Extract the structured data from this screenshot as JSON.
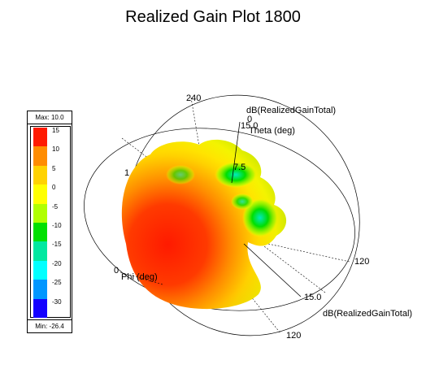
{
  "chart_data": {
    "type": "polar-3d-surface",
    "title": "Realized Gain Plot 1800",
    "quantity": "dB(RealizedGainTotal)",
    "legend": {
      "max_label": "Max: 10.0",
      "min_label": "Min: -26.4",
      "ticks": [
        "15",
        "10",
        "5",
        "0",
        "-5",
        "-10",
        "-15",
        "-20",
        "-25",
        "-30"
      ],
      "colors": [
        "#ff1a00",
        "#ff8c00",
        "#ffd200",
        "#ffff00",
        "#b0ff00",
        "#00e000",
        "#00e8a0",
        "#00ffff",
        "#0096ff",
        "#1400ff"
      ]
    },
    "axes": {
      "theta_label": "Theta (deg)",
      "phi_label": "Phi (deg)",
      "quantity_label_top": "dB(RealizedGainTotal)",
      "quantity_label_bottom": "dB(RealizedGainTotal)",
      "tick_labels": [
        "240",
        "120",
        "120",
        "0",
        "15.0",
        "15.0",
        "7.5",
        "0",
        "1"
      ]
    }
  }
}
